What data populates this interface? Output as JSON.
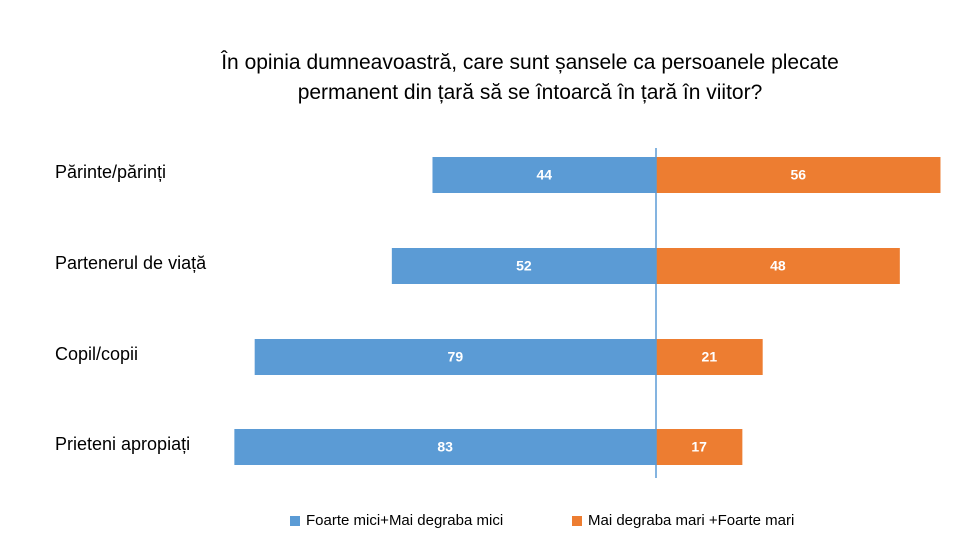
{
  "title": {
    "line1": "În opinia dumneavoastră, care sunt șansele ca persoanele plecate",
    "line2": "permanent din țară să se întoarcă în țară în viitor?"
  },
  "chart_data": {
    "type": "bar",
    "orientation": "horizontal",
    "stacked": "diverging",
    "categories": [
      "Părinte/părinți",
      "Partenerul de viață",
      "Copil/copii",
      "Prieteni apropiați"
    ],
    "series": [
      {
        "name": "Foarte mici+Mai degraba mici",
        "color": "#5B9BD5",
        "values": [
          44,
          52,
          79,
          83
        ]
      },
      {
        "name": "Mai degraba mari +Foarte mari",
        "color": "#ED7D31",
        "values": [
          56,
          48,
          21,
          17
        ]
      }
    ],
    "axis_color": "#5B9BD5",
    "legend_position": "bottom",
    "grid": false
  }
}
